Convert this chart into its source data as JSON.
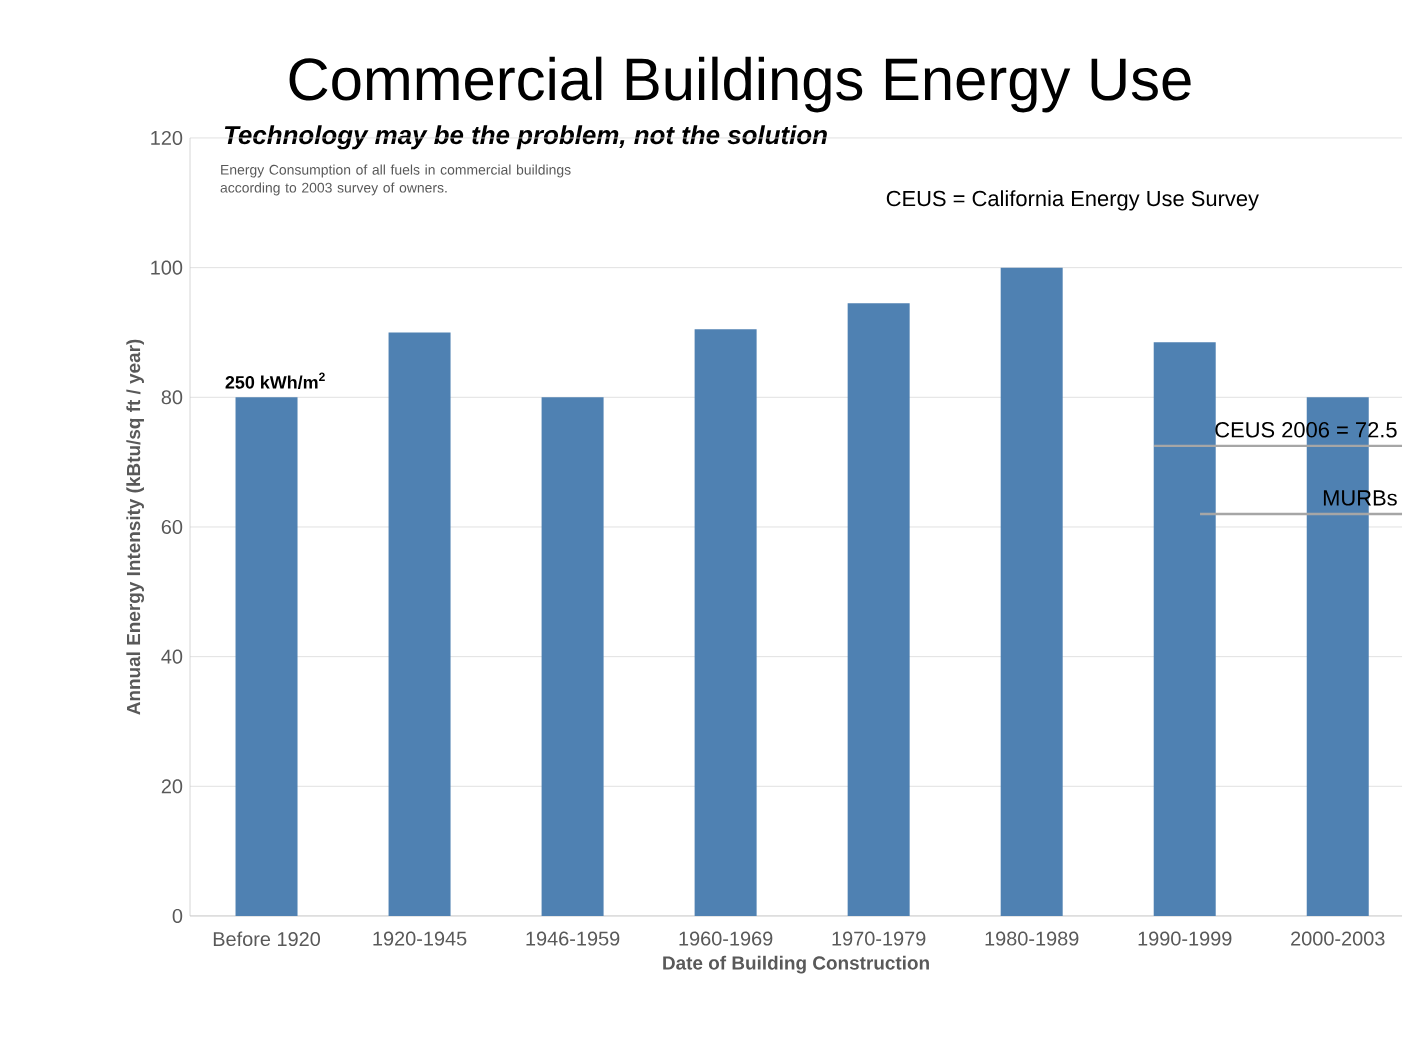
{
  "chart_data": {
    "type": "bar",
    "title": "Commercial Buildings Energy Use",
    "subtitle": "Technology may be the problem, not the solution",
    "xlabel": "Date of Building Construction",
    "ylabel": "Annual Energy Intensity (kBtu/sq ft / year)",
    "categories": [
      "Before 1920",
      "1920-1945",
      "1946-1959",
      "1960-1969",
      "1970-1979",
      "1980-1989",
      "1990-1999",
      "2000-2003"
    ],
    "values": [
      80,
      90,
      80,
      90.5,
      94.5,
      100,
      88.5,
      80
    ],
    "color": "#4f81b2",
    "ylim": [
      0,
      120
    ],
    "yticks": [
      0,
      20,
      40,
      60,
      80,
      100,
      120
    ],
    "grid": "y",
    "ref_lines": [
      {
        "axis": "y",
        "value": 72.5,
        "label": "CEUS 2006 = 72.5",
        "color": "#a6a6a6"
      },
      {
        "axis": "y",
        "value": 62,
        "label": "MURBs",
        "color": "#a6a6a6"
      }
    ],
    "annotations": [
      "Energy Consumption of all fuels in commercial buildings according to 2003 survey of owners.",
      "CEUS = California Energy Use Survey",
      {
        "text": "250 kWh/m$^{2}$",
        "x": "Before 1920",
        "y": 80
      }
    ]
  }
}
